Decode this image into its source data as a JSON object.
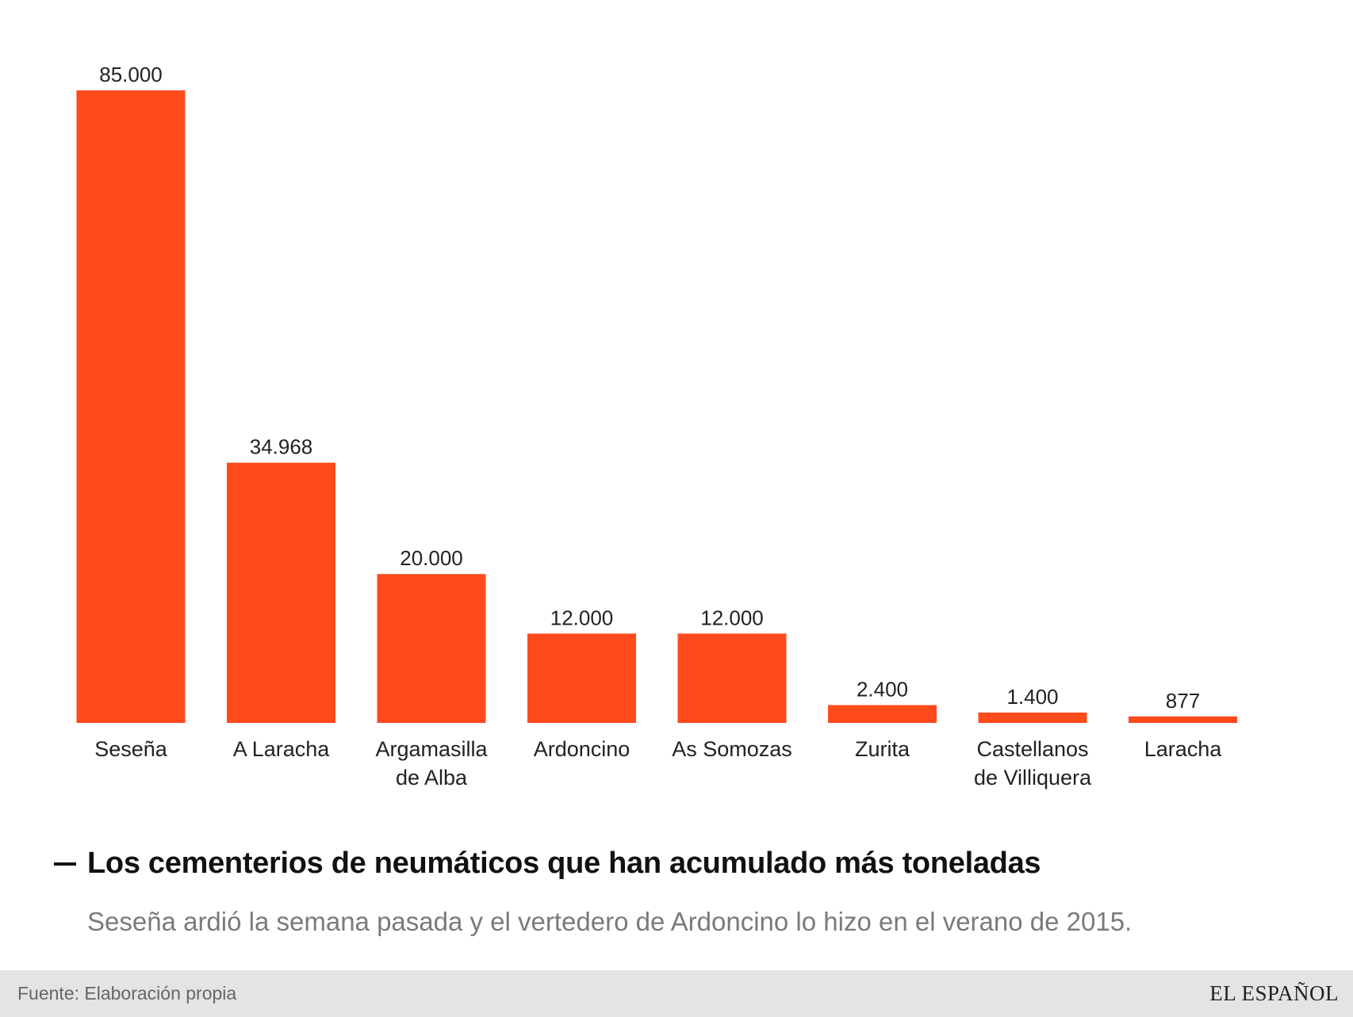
{
  "colors": {
    "bar": "#ff4a1c",
    "label": "#222222"
  },
  "chart_data": {
    "type": "bar",
    "categories": [
      [
        "Seseña"
      ],
      [
        "A Laracha"
      ],
      [
        "Argamasilla",
        "de Alba"
      ],
      [
        "Ardoncino"
      ],
      [
        "As Somozas"
      ],
      [
        "Zurita"
      ],
      [
        "Castellanos",
        "de Villiquera"
      ],
      [
        "Laracha"
      ]
    ],
    "values": [
      85000,
      34968,
      20000,
      12000,
      12000,
      2400,
      1400,
      877
    ],
    "value_labels": [
      "85.000",
      "34.968",
      "20.000",
      "12.000",
      "12.000",
      "2.400",
      "1.400",
      "877"
    ],
    "ylim": [
      0,
      85000
    ],
    "grid": false,
    "legend": "none"
  },
  "headline": "Los cementerios de neumáticos que han acumulado más toneladas",
  "subtitle": "Seseña ardió la semana pasada y el vertedero de Ardoncino lo hizo en el verano de 2015.",
  "footer": {
    "source": "Fuente: Elaboración propia",
    "logo": "EL ESPAÑOL"
  }
}
